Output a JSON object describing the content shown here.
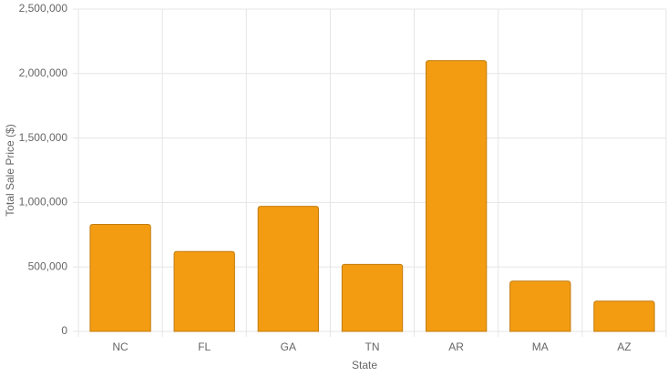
{
  "chart_data": {
    "type": "bar",
    "x_label": "State",
    "y_label": "Total Sale Price ($)",
    "categories": [
      "NC",
      "FL",
      "GA",
      "TN",
      "AR",
      "MA",
      "AZ"
    ],
    "values": [
      830000,
      620000,
      970000,
      520000,
      2100000,
      390000,
      235000
    ],
    "color": "#f39c12",
    "border_color": "#c27c0e",
    "ylim": [
      0,
      2500000
    ],
    "yticks": [
      0,
      {
        "value": 500000,
        "label": "500,000"
      },
      {
        "value": 1000000,
        "label": "1,000,000"
      },
      {
        "value": 1500000,
        "label": "1,500,000"
      },
      {
        "value": 2000000,
        "label": "2,000,000"
      },
      {
        "value": 2500000,
        "label": "2,500,000"
      }
    ],
    "grid": true
  }
}
